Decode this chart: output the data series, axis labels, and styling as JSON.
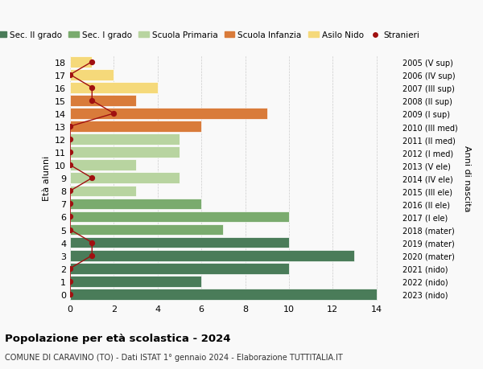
{
  "ages": [
    18,
    17,
    16,
    15,
    14,
    13,
    12,
    11,
    10,
    9,
    8,
    7,
    6,
    5,
    4,
    3,
    2,
    1,
    0
  ],
  "right_labels": [
    "2005 (V sup)",
    "2006 (IV sup)",
    "2007 (III sup)",
    "2008 (II sup)",
    "2009 (I sup)",
    "2010 (III med)",
    "2011 (II med)",
    "2012 (I med)",
    "2013 (V ele)",
    "2014 (IV ele)",
    "2015 (III ele)",
    "2016 (II ele)",
    "2017 (I ele)",
    "2018 (mater)",
    "2019 (mater)",
    "2020 (mater)",
    "2021 (nido)",
    "2022 (nido)",
    "2023 (nido)"
  ],
  "bar_values": [
    14,
    6,
    10,
    13,
    10,
    7,
    10,
    6,
    3,
    5,
    3,
    5,
    5,
    6,
    9,
    3,
    4,
    2,
    1
  ],
  "bar_colors": [
    "#4a7c59",
    "#4a7c59",
    "#4a7c59",
    "#4a7c59",
    "#4a7c59",
    "#7aab6e",
    "#7aab6e",
    "#7aab6e",
    "#b8d4a0",
    "#b8d4a0",
    "#b8d4a0",
    "#b8d4a0",
    "#b8d4a0",
    "#d97b3a",
    "#d97b3a",
    "#d97b3a",
    "#f5d97a",
    "#f5d97a",
    "#f5d97a"
  ],
  "stranieri_values": [
    0,
    0,
    0,
    1,
    1,
    0,
    0,
    0,
    0,
    1,
    0,
    0,
    0,
    0,
    2,
    1,
    1,
    0,
    1
  ],
  "stranieri_color": "#a01010",
  "title": "Popolazione per età scolastica - 2024",
  "subtitle": "COMUNE DI CARAVINO (TO) - Dati ISTAT 1° gennaio 2024 - Elaborazione TUTTITALIA.IT",
  "ylabel_left": "Età alunni",
  "ylabel_right": "Anni di nascita",
  "xlim": [
    0,
    15
  ],
  "xticks": [
    0,
    2,
    4,
    6,
    8,
    10,
    12,
    14
  ],
  "legend_labels": [
    "Sec. II grado",
    "Sec. I grado",
    "Scuola Primaria",
    "Scuola Infanzia",
    "Asilo Nido",
    "Stranieri"
  ],
  "legend_colors": [
    "#4a7c59",
    "#7aab6e",
    "#b8d4a0",
    "#d97b3a",
    "#f5d97a",
    "#a01010"
  ],
  "bg_color": "#f9f9f9",
  "grid_color": "#cccccc"
}
